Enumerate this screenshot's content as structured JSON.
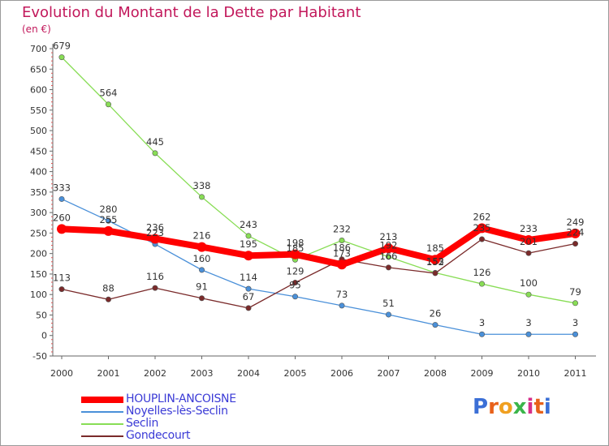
{
  "header": {
    "title": "Evolution du Montant de la Dette par Habitant",
    "subtitle": "(en €)"
  },
  "logo": {
    "text": "Proxiti",
    "letter_colors": [
      "#3b6fd6",
      "#e8611a",
      "#f0a020",
      "#3bb54a",
      "#d62f8a",
      "#e8611a",
      "#3b6fd6"
    ]
  },
  "chart_data": {
    "type": "line",
    "title": "Evolution du Montant de la Dette par Habitant",
    "ylabel": "(en €)",
    "xlabel": "",
    "x": [
      "2000",
      "2001",
      "2002",
      "2003",
      "2004",
      "2005",
      "2006",
      "2007",
      "2008",
      "2009",
      "2010",
      "2011"
    ],
    "ylim": [
      -50,
      700
    ],
    "yticks": [
      -50,
      0,
      50,
      100,
      150,
      200,
      250,
      300,
      350,
      400,
      450,
      500,
      550,
      600,
      650,
      700
    ],
    "grid": false,
    "legend_position": "bottom-left",
    "series": [
      {
        "name": "HOUPLIN-ANCOISNE",
        "color": "#ff0000",
        "values": [
          260,
          255,
          236,
          216,
          195,
          198,
          173,
          213,
          185,
          262,
          233,
          249
        ],
        "labels": [
          "260",
          "255",
          "236",
          "216",
          "195",
          "198",
          "173",
          "213",
          "185",
          "262",
          "233",
          "249"
        ]
      },
      {
        "name": "Noyelles-lès-Seclin",
        "color": "#4a90d9",
        "values": [
          333,
          280,
          223,
          160,
          114,
          95,
          73,
          51,
          26,
          3,
          3,
          3
        ],
        "labels": [
          "333",
          "280",
          "223",
          "160",
          "114",
          "95",
          "73",
          "51",
          "26",
          "3",
          "3",
          "3"
        ]
      },
      {
        "name": "Seclin",
        "color": "#88dd55",
        "values": [
          679,
          564,
          445,
          338,
          243,
          185,
          232,
          192,
          153,
          126,
          100,
          79
        ],
        "labels": [
          "679",
          "564",
          "445",
          "338",
          "243",
          "185",
          "232",
          "192",
          "153",
          "126",
          "100",
          "79"
        ]
      },
      {
        "name": "Gondecourt",
        "color": "#7a2a2a",
        "values": [
          113,
          88,
          116,
          91,
          67,
          129,
          186,
          166,
          152,
          235,
          201,
          224
        ],
        "labels": [
          "113",
          "88",
          "116",
          "91",
          "67",
          "129",
          "186",
          "166",
          "152",
          "235",
          "201",
          "224"
        ]
      }
    ]
  }
}
